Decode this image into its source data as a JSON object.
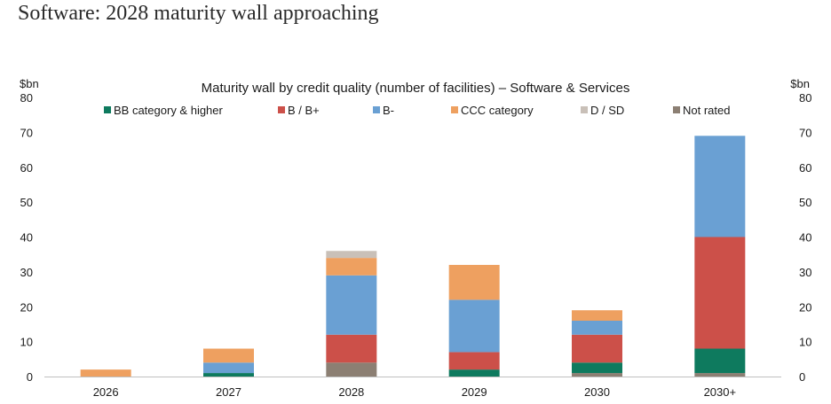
{
  "page": {
    "heading": "Software: 2028 maturity wall approaching"
  },
  "chart_data": {
    "type": "bar",
    "stacked": true,
    "title": "Maturity wall by credit quality (number of facilities) – Software & Services",
    "ylabel_left": "$bn",
    "ylabel_right": "$bn",
    "ylim": [
      0,
      80
    ],
    "yticks": [
      0,
      10,
      20,
      30,
      40,
      50,
      60,
      70,
      80
    ],
    "categories": [
      "2026",
      "2027",
      "2028",
      "2029",
      "2030",
      "2030+"
    ],
    "legend_position": "top",
    "series": [
      {
        "name": "Not rated",
        "color": "#8c7f73",
        "values": [
          0,
          0,
          4,
          0,
          1,
          1
        ]
      },
      {
        "name": "BB category & higher",
        "color": "#0e7a5e",
        "values": [
          0,
          1,
          0,
          2,
          3,
          7
        ]
      },
      {
        "name": "B / B+",
        "color": "#cc5049",
        "values": [
          0,
          0,
          8,
          5,
          8,
          32
        ]
      },
      {
        "name": "B-",
        "color": "#6aa0d3",
        "values": [
          0,
          3,
          17,
          15,
          4,
          29
        ]
      },
      {
        "name": "CCC category",
        "color": "#eea060",
        "values": [
          2,
          4,
          5,
          10,
          3,
          0
        ]
      },
      {
        "name": "D / SD",
        "color": "#c9c0b8",
        "values": [
          0,
          0,
          2,
          0,
          0,
          0
        ]
      }
    ],
    "legend_order": [
      "BB category & higher",
      "B / B+",
      "B-",
      "CCC category",
      "D / SD",
      "Not rated"
    ]
  }
}
